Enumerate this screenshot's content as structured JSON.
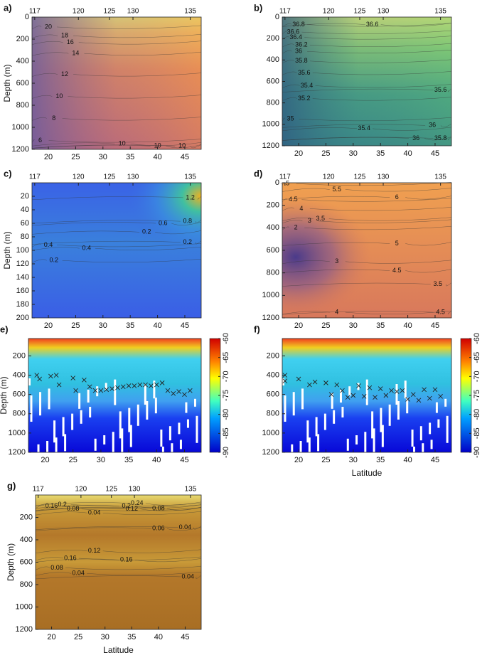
{
  "chart_data": [
    {
      "type": "contour",
      "panel": "a)",
      "ylabel": "Depth (m)",
      "xlim": [
        17,
        48
      ],
      "xticks": [
        20,
        25,
        30,
        35,
        40,
        45
      ],
      "x2ticks": [
        117,
        120,
        125,
        130,
        135
      ],
      "ylim": [
        0,
        1200
      ],
      "yticks": [
        0,
        200,
        400,
        600,
        800,
        1000,
        1200
      ],
      "contour_labels": [
        20,
        18,
        16,
        14,
        12,
        10,
        8,
        6,
        10,
        10,
        10
      ]
    },
    {
      "type": "contour",
      "panel": "b)",
      "xlim": [
        17,
        48
      ],
      "xticks": [
        20,
        25,
        30,
        35,
        40,
        45
      ],
      "x2ticks": [
        117,
        120,
        125,
        130,
        135
      ],
      "ylim": [
        0,
        1200
      ],
      "yticks": [
        0,
        200,
        400,
        600,
        800,
        1000,
        1200
      ],
      "contour_labels": [
        36.8,
        36.6,
        36.4,
        36.2,
        36,
        35.8,
        35.6,
        35.4,
        35.2,
        35,
        36.6,
        35.6,
        35.4,
        36,
        36,
        35.8
      ]
    },
    {
      "type": "contour",
      "panel": "c)",
      "ylabel": "Depth (m)",
      "xlim": [
        17,
        48
      ],
      "xticks": [
        20,
        25,
        30,
        35,
        40,
        45
      ],
      "x2ticks": [
        117,
        120,
        125,
        130,
        135
      ],
      "ylim": [
        0,
        200
      ],
      "yticks": [
        20,
        40,
        60,
        80,
        100,
        120,
        140,
        160,
        180,
        200
      ],
      "contour_labels": [
        0.4,
        0.2,
        0.4,
        0.2,
        0.6,
        0.8,
        0.2,
        1.2
      ]
    },
    {
      "type": "contour",
      "panel": "d)",
      "xlim": [
        17,
        48
      ],
      "xticks": [
        20,
        25,
        30,
        35,
        40,
        45
      ],
      "x2ticks": [
        117,
        120,
        125,
        130,
        135
      ],
      "ylim": [
        0,
        1200
      ],
      "yticks": [
        0,
        200,
        400,
        600,
        800,
        1000,
        1200
      ],
      "contour_labels": [
        5,
        5.5,
        6,
        4.5,
        4,
        3.5,
        3,
        2,
        3,
        5,
        4.5,
        3.5,
        4,
        4.5
      ]
    },
    {
      "type": "heatmap",
      "panel": "e)",
      "ylabel": "Depth (m)",
      "xlim": [
        17,
        48
      ],
      "xticks": [
        20,
        25,
        30,
        35,
        40,
        45
      ],
      "ylim": [
        20,
        1200
      ],
      "yticks": [
        200,
        400,
        600,
        800,
        1000,
        1200
      ],
      "clim": [
        -90,
        -60
      ],
      "cticks": [
        -60,
        -65,
        -70,
        -75,
        -80,
        -85,
        -90
      ],
      "points": {
        "x": [
          18.5,
          19,
          21,
          22,
          22.5,
          25,
          25.5,
          27,
          28,
          29,
          30,
          31,
          32,
          33,
          34,
          35,
          36,
          37,
          38,
          39,
          40,
          41,
          42,
          43,
          44,
          45,
          46
        ],
        "y": [
          400,
          440,
          410,
          400,
          500,
          430,
          560,
          450,
          520,
          560,
          560,
          550,
          540,
          530,
          520,
          510,
          510,
          500,
          500,
          510,
          500,
          480,
          560,
          590,
          570,
          600,
          560
        ]
      }
    },
    {
      "type": "heatmap",
      "panel": "f)",
      "xlabel": "Latitude",
      "xlim": [
        17,
        48
      ],
      "xticks": [
        20,
        25,
        30,
        35,
        40,
        45
      ],
      "ylim": [
        20,
        1200
      ],
      "yticks": [
        200,
        400,
        600,
        800,
        1000,
        1200
      ],
      "clim": [
        -90,
        -60
      ],
      "cticks": [
        -60,
        -65,
        -70,
        -75,
        -80,
        -85,
        -90
      ],
      "points": {
        "x": [
          17.5,
          17.5,
          20,
          22,
          23,
          25,
          26,
          27,
          28,
          29,
          30,
          31,
          32,
          33,
          34,
          35,
          36,
          37,
          38,
          39,
          40,
          41,
          42,
          43,
          44,
          45,
          46
        ],
        "y": [
          400,
          460,
          440,
          500,
          470,
          480,
          600,
          500,
          560,
          630,
          610,
          510,
          620,
          530,
          630,
          540,
          610,
          560,
          570,
          560,
          650,
          600,
          660,
          550,
          640,
          550,
          620
        ]
      }
    },
    {
      "type": "contour",
      "panel": "g)",
      "ylabel": "Depth (m)",
      "xlabel": "Latitude",
      "xlim": [
        17,
        48
      ],
      "xticks": [
        20,
        25,
        30,
        35,
        40,
        45
      ],
      "x2ticks": [
        117,
        120,
        125,
        130,
        135
      ],
      "ylim": [
        0,
        1200
      ],
      "yticks": [
        200,
        400,
        600,
        800,
        1000,
        1200
      ],
      "contour_labels": [
        0.16,
        0.2,
        0.08,
        0.04,
        0.24,
        0.2,
        0.12,
        0.08,
        0.06,
        0.04,
        0.16,
        0.12,
        0.16,
        0.08,
        0.04,
        0.04
      ]
    }
  ]
}
